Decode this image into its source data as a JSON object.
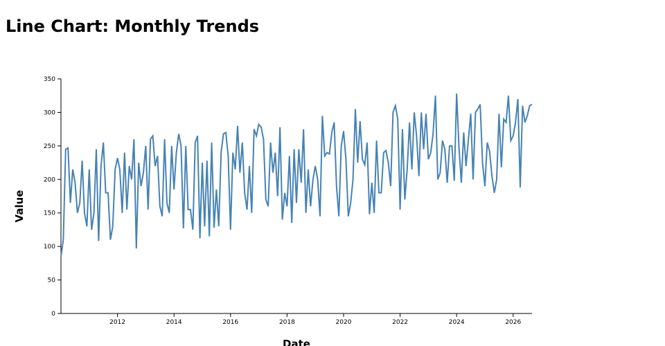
{
  "chart_data": {
    "type": "line",
    "title": "Line Chart: Monthly Trends",
    "x_label": "Date",
    "y_label": "Value",
    "x": [
      2010,
      2010.083,
      2010.167,
      2010.25,
      2010.333,
      2010.417,
      2010.5,
      2010.583,
      2010.667,
      2010.75,
      2010.833,
      2010.917,
      2011,
      2011.083,
      2011.167,
      2011.25,
      2011.333,
      2011.417,
      2011.5,
      2011.583,
      2011.667,
      2011.75,
      2011.833,
      2011.917,
      2012,
      2012.083,
      2012.167,
      2012.25,
      2012.333,
      2012.417,
      2012.5,
      2012.583,
      2012.667,
      2012.75,
      2012.833,
      2012.917,
      2013,
      2013.083,
      2013.167,
      2013.25,
      2013.333,
      2013.417,
      2013.5,
      2013.583,
      2013.667,
      2013.75,
      2013.833,
      2013.917,
      2014,
      2014.083,
      2014.167,
      2014.25,
      2014.333,
      2014.417,
      2014.5,
      2014.583,
      2014.667,
      2014.75,
      2014.833,
      2014.917,
      2015,
      2015.083,
      2015.167,
      2015.25,
      2015.333,
      2015.417,
      2015.5,
      2015.583,
      2015.667,
      2015.75,
      2015.833,
      2015.917,
      2016,
      2016.083,
      2016.167,
      2016.25,
      2016.333,
      2016.417,
      2016.5,
      2016.583,
      2016.667,
      2016.75,
      2016.833,
      2016.917,
      2017,
      2017.083,
      2017.167,
      2017.25,
      2017.333,
      2017.417,
      2017.5,
      2017.583,
      2017.667,
      2017.75,
      2017.833,
      2017.917,
      2018,
      2018.083,
      2018.167,
      2018.25,
      2018.333,
      2018.417,
      2018.5,
      2018.583,
      2018.667,
      2018.75,
      2018.833,
      2018.917,
      2019,
      2019.083,
      2019.167,
      2019.25,
      2019.333,
      2019.417,
      2019.5,
      2019.583,
      2019.667,
      2019.75,
      2019.833,
      2019.917,
      2020,
      2020.083,
      2020.167,
      2020.25,
      2020.333,
      2020.417,
      2020.5,
      2020.583,
      2020.667,
      2020.75,
      2020.833,
      2020.917,
      2021,
      2021.083,
      2021.167,
      2021.25,
      2021.333,
      2021.417,
      2021.5,
      2021.583,
      2021.667,
      2021.75,
      2021.833,
      2021.917,
      2022,
      2022.083,
      2022.167,
      2022.25,
      2022.333,
      2022.417,
      2022.5,
      2022.583,
      2022.667,
      2022.75,
      2022.833,
      2022.917,
      2023,
      2023.083,
      2023.167,
      2023.25,
      2023.333,
      2023.417,
      2023.5,
      2023.583,
      2023.667,
      2023.75,
      2023.833,
      2023.917,
      2024,
      2024.083,
      2024.167,
      2024.25,
      2024.333,
      2024.417,
      2024.5,
      2024.583,
      2024.667,
      2024.75,
      2024.833,
      2024.917,
      2025,
      2025.083,
      2025.167,
      2025.25,
      2025.333,
      2025.417,
      2025.5,
      2025.583,
      2025.667,
      2025.75,
      2025.833,
      2025.917,
      2026,
      2026.083,
      2026.167,
      2026.25,
      2026.333,
      2026.417,
      2026.5,
      2026.583,
      2026.667
    ],
    "series": [
      {
        "name": "Value",
        "color": "#4682b4",
        "values": [
          85,
          110,
          245,
          247,
          165,
          215,
          195,
          150,
          165,
          228,
          150,
          130,
          215,
          125,
          150,
          245,
          108,
          220,
          255,
          180,
          180,
          110,
          130,
          215,
          232,
          215,
          150,
          240,
          155,
          220,
          200,
          260,
          97,
          225,
          190,
          210,
          250,
          155,
          260,
          265,
          220,
          235,
          160,
          145,
          260,
          165,
          150,
          250,
          185,
          240,
          268,
          250,
          127,
          250,
          155,
          155,
          125,
          255,
          265,
          112,
          225,
          130,
          228,
          115,
          255,
          128,
          185,
          130,
          240,
          268,
          270,
          235,
          125,
          240,
          215,
          280,
          210,
          255,
          180,
          155,
          220,
          150,
          275,
          265,
          282,
          278,
          260,
          170,
          160,
          255,
          210,
          240,
          175,
          278,
          140,
          180,
          160,
          235,
          135,
          245,
          165,
          245,
          195,
          275,
          150,
          215,
          160,
          200,
          220,
          200,
          145,
          295,
          235,
          240,
          238,
          270,
          285,
          190,
          145,
          250,
          272,
          230,
          145,
          165,
          200,
          305,
          225,
          287,
          230,
          222,
          255,
          148,
          195,
          150,
          258,
          180,
          180,
          240,
          243,
          225,
          190,
          300,
          310,
          290,
          155,
          275,
          170,
          215,
          285,
          215,
          300,
          265,
          205,
          300,
          245,
          298,
          230,
          240,
          268,
          325,
          200,
          210,
          258,
          245,
          195,
          250,
          250,
          198,
          328,
          248,
          195,
          270,
          220,
          260,
          298,
          200,
          300,
          305,
          312,
          225,
          190,
          255,
          242,
          205,
          180,
          200,
          298,
          218,
          290,
          285,
          325,
          258,
          265,
          285,
          320,
          188,
          310,
          285,
          295,
          310,
          312
        ]
      }
    ],
    "xlim": [
      2010,
      2026.667
    ],
    "ylim": [
      0,
      350
    ],
    "xticks": [
      2012,
      2014,
      2016,
      2018,
      2020,
      2022,
      2024,
      2026
    ],
    "yticks": [
      0,
      50,
      100,
      150,
      200,
      250,
      300,
      350
    ]
  }
}
